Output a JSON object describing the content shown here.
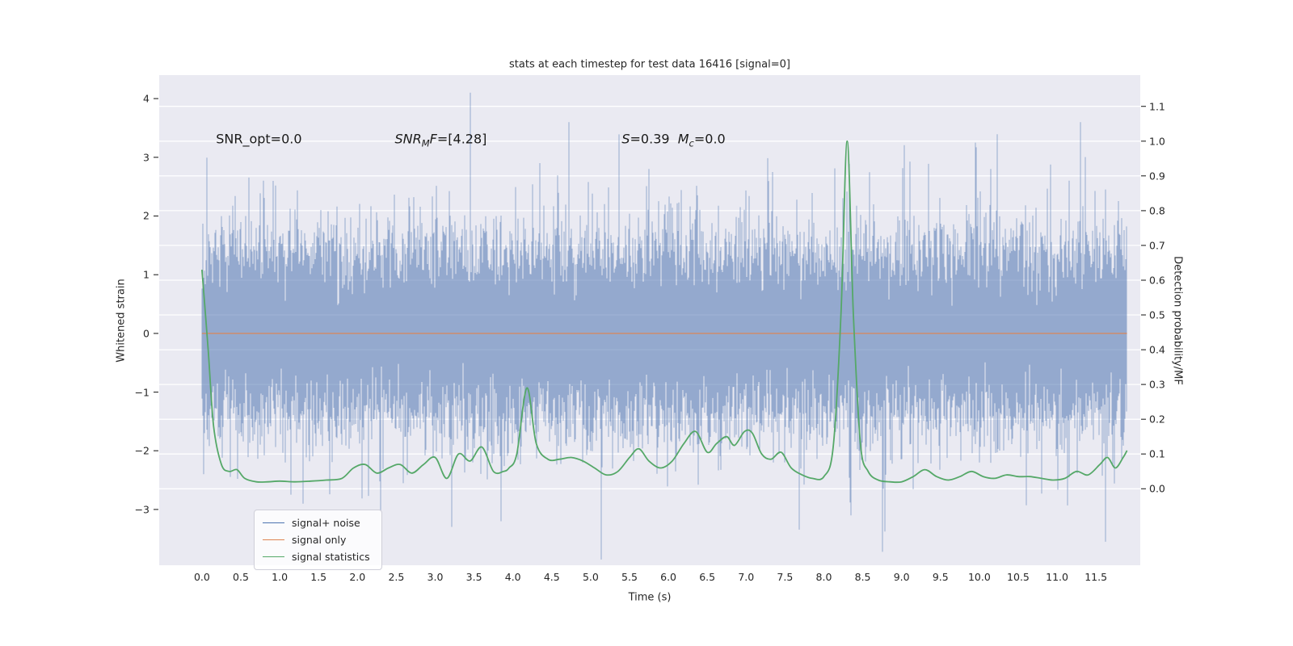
{
  "chart_data": {
    "type": "line",
    "title": "stats at each timestep for test data 16416 [signal=0]",
    "xlabel": "Time (s)",
    "ylabel_left": "Whitened strain",
    "ylabel_right": "Detection probability/MF",
    "plot_bg": "#EAEAF2",
    "grid": "horizontal-white-lines-at-right-axis-ticks",
    "legend_position": "lower left",
    "xlim": [
      -0.55,
      12.07
    ],
    "ylim_left": [
      -3.95,
      4.4
    ],
    "ylim_right": [
      -0.22,
      1.19
    ],
    "x_ticks": [
      {
        "label": "0.0",
        "value": 0.0
      },
      {
        "label": "0.5",
        "value": 0.5
      },
      {
        "label": "1.0",
        "value": 1.0
      },
      {
        "label": "1.5",
        "value": 1.5
      },
      {
        "label": "2.0",
        "value": 2.0
      },
      {
        "label": "2.5",
        "value": 2.5
      },
      {
        "label": "3.0",
        "value": 3.0
      },
      {
        "label": "3.5",
        "value": 3.5
      },
      {
        "label": "4.0",
        "value": 4.0
      },
      {
        "label": "4.5",
        "value": 4.5
      },
      {
        "label": "5.0",
        "value": 5.0
      },
      {
        "label": "5.5",
        "value": 5.5
      },
      {
        "label": "6.0",
        "value": 6.0
      },
      {
        "label": "6.5",
        "value": 6.5
      },
      {
        "label": "7.0",
        "value": 7.0
      },
      {
        "label": "7.5",
        "value": 7.5
      },
      {
        "label": "8.0",
        "value": 8.0
      },
      {
        "label": "8.5",
        "value": 8.5
      },
      {
        "label": "9.0",
        "value": 9.0
      },
      {
        "label": "9.5",
        "value": 9.5
      },
      {
        "label": "10.0",
        "value": 10.0
      },
      {
        "label": "10.5",
        "value": 10.5
      },
      {
        "label": "11.0",
        "value": 11.0
      },
      {
        "label": "11.5",
        "value": 11.5
      }
    ],
    "y_ticks_left": [
      {
        "label": "4",
        "value": 4
      },
      {
        "label": "3",
        "value": 3
      },
      {
        "label": "2",
        "value": 2
      },
      {
        "label": "1",
        "value": 1
      },
      {
        "label": "0",
        "value": 0
      },
      {
        "label": "−1",
        "value": -1
      },
      {
        "label": "−2",
        "value": -2
      },
      {
        "label": "−3",
        "value": -3
      }
    ],
    "y_ticks_right": [
      {
        "label": "1.1",
        "value": 1.1
      },
      {
        "label": "1.0",
        "value": 1.0
      },
      {
        "label": "0.9",
        "value": 0.9
      },
      {
        "label": "0.8",
        "value": 0.8
      },
      {
        "label": "0.7",
        "value": 0.7
      },
      {
        "label": "0.6",
        "value": 0.6
      },
      {
        "label": "0.5",
        "value": 0.5
      },
      {
        "label": "0.4",
        "value": 0.4
      },
      {
        "label": "0.3",
        "value": 0.3
      },
      {
        "label": "0.2",
        "value": 0.2
      },
      {
        "label": "0.1",
        "value": 0.1
      },
      {
        "label": "0.0",
        "value": 0.0
      }
    ],
    "series": [
      {
        "name": "signal+ noise",
        "color": "#4C72B0",
        "type": "noise-band",
        "axis": "left",
        "t_range": [
          0.0,
          11.9
        ],
        "stddev": 0.75,
        "samples_per_column": 21,
        "notable_spikes": [
          {
            "t": 0.02,
            "v": -2.4
          },
          {
            "t": 1.3,
            "v": -2.9
          },
          {
            "t": 3.45,
            "v": 4.1
          },
          {
            "t": 3.85,
            "v": -3.2
          },
          {
            "t": 4.35,
            "v": 2.9
          },
          {
            "t": 4.72,
            "v": 3.6
          },
          {
            "t": 5.75,
            "v": 2.8
          },
          {
            "t": 8.35,
            "v": -3.1
          },
          {
            "t": 9.95,
            "v": 3.25
          },
          {
            "t": 10.15,
            "v": 2.8
          },
          {
            "t": 11.3,
            "v": 3.6
          },
          {
            "t": 11.62,
            "v": -3.55
          }
        ]
      },
      {
        "name": "signal only",
        "color": "#DD8452",
        "type": "constant",
        "axis": "left",
        "value": 0.0,
        "t_range": [
          0.0,
          11.9
        ]
      },
      {
        "name": "signal statistics",
        "color": "#55A868",
        "type": "curve",
        "axis": "right",
        "points": [
          [
            0.0,
            0.63
          ],
          [
            0.08,
            0.4
          ],
          [
            0.15,
            0.18
          ],
          [
            0.25,
            0.07
          ],
          [
            0.35,
            0.05
          ],
          [
            0.45,
            0.055
          ],
          [
            0.55,
            0.03
          ],
          [
            0.7,
            0.02
          ],
          [
            0.85,
            0.02
          ],
          [
            1.0,
            0.022
          ],
          [
            1.2,
            0.02
          ],
          [
            1.4,
            0.022
          ],
          [
            1.6,
            0.025
          ],
          [
            1.8,
            0.03
          ],
          [
            1.95,
            0.06
          ],
          [
            2.1,
            0.07
          ],
          [
            2.25,
            0.045
          ],
          [
            2.4,
            0.06
          ],
          [
            2.55,
            0.07
          ],
          [
            2.7,
            0.045
          ],
          [
            2.85,
            0.07
          ],
          [
            3.0,
            0.09
          ],
          [
            3.15,
            0.03
          ],
          [
            3.3,
            0.1
          ],
          [
            3.45,
            0.08
          ],
          [
            3.6,
            0.12
          ],
          [
            3.75,
            0.05
          ],
          [
            3.88,
            0.05
          ],
          [
            3.95,
            0.06
          ],
          [
            4.05,
            0.1
          ],
          [
            4.18,
            0.29
          ],
          [
            4.3,
            0.13
          ],
          [
            4.45,
            0.085
          ],
          [
            4.6,
            0.085
          ],
          [
            4.75,
            0.09
          ],
          [
            4.9,
            0.08
          ],
          [
            5.05,
            0.06
          ],
          [
            5.2,
            0.04
          ],
          [
            5.35,
            0.05
          ],
          [
            5.5,
            0.09
          ],
          [
            5.62,
            0.115
          ],
          [
            5.75,
            0.08
          ],
          [
            5.9,
            0.06
          ],
          [
            6.05,
            0.08
          ],
          [
            6.2,
            0.13
          ],
          [
            6.35,
            0.165
          ],
          [
            6.5,
            0.105
          ],
          [
            6.62,
            0.13
          ],
          [
            6.75,
            0.15
          ],
          [
            6.85,
            0.125
          ],
          [
            6.98,
            0.165
          ],
          [
            7.08,
            0.16
          ],
          [
            7.2,
            0.1
          ],
          [
            7.32,
            0.085
          ],
          [
            7.45,
            0.105
          ],
          [
            7.58,
            0.06
          ],
          [
            7.72,
            0.04
          ],
          [
            7.85,
            0.03
          ],
          [
            8.0,
            0.035
          ],
          [
            8.12,
            0.12
          ],
          [
            8.22,
            0.5
          ],
          [
            8.3,
            1.0
          ],
          [
            8.38,
            0.5
          ],
          [
            8.47,
            0.13
          ],
          [
            8.57,
            0.05
          ],
          [
            8.7,
            0.025
          ],
          [
            8.85,
            0.02
          ],
          [
            9.0,
            0.02
          ],
          [
            9.15,
            0.035
          ],
          [
            9.3,
            0.055
          ],
          [
            9.45,
            0.035
          ],
          [
            9.6,
            0.025
          ],
          [
            9.75,
            0.035
          ],
          [
            9.9,
            0.05
          ],
          [
            10.05,
            0.035
          ],
          [
            10.2,
            0.03
          ],
          [
            10.35,
            0.04
          ],
          [
            10.5,
            0.035
          ],
          [
            10.65,
            0.035
          ],
          [
            10.8,
            0.03
          ],
          [
            10.95,
            0.025
          ],
          [
            11.1,
            0.03
          ],
          [
            11.25,
            0.05
          ],
          [
            11.4,
            0.04
          ],
          [
            11.55,
            0.07
          ],
          [
            11.65,
            0.09
          ],
          [
            11.75,
            0.06
          ],
          [
            11.85,
            0.09
          ],
          [
            11.9,
            0.11
          ]
        ]
      }
    ],
    "annotations": [
      {
        "x": 0.18,
        "y": 3.31,
        "segments": [
          {
            "text": "SNR_opt=0.0"
          }
        ]
      },
      {
        "x": 2.48,
        "y": 3.31,
        "segments": [
          {
            "text": "SNR",
            "italic": true
          },
          {
            "text": "M",
            "italic": true,
            "sub": true
          },
          {
            "text": "F",
            "italic": true
          },
          {
            "text": "=[4.28]"
          }
        ]
      },
      {
        "x": 5.4,
        "y": 3.31,
        "segments": [
          {
            "text": "S",
            "italic": true
          },
          {
            "text": "=0.39"
          },
          {
            "text": "  "
          },
          {
            "text": "M",
            "italic": true
          },
          {
            "text": "c",
            "italic": true,
            "sub": true
          },
          {
            "text": "=0.0"
          }
        ]
      }
    ]
  }
}
